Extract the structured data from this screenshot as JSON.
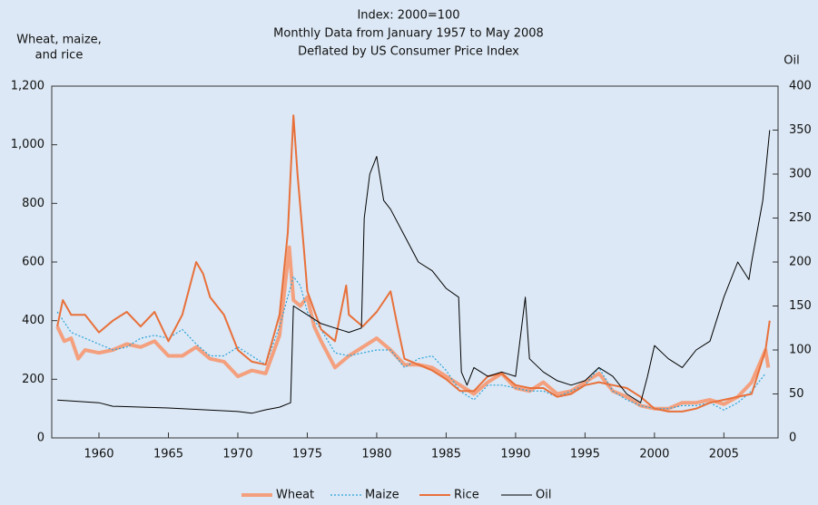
{
  "chart_data": {
    "type": "line",
    "title": [
      "Index: 2000=100",
      "Monthly Data from January 1957 to May 2008",
      "Deflated by US Consumer Price Index"
    ],
    "y_label": [
      "Wheat, maize,",
      "and rice"
    ],
    "y2_label": "Oil",
    "xlim": [
      1956.6,
      2008.9
    ],
    "xticks": [
      1960,
      1965,
      1970,
      1975,
      1980,
      1985,
      1990,
      1995,
      2000,
      2005
    ],
    "ylim": [
      0,
      1200
    ],
    "yticks": [
      0,
      200,
      400,
      600,
      800,
      {
        "value": 1000,
        "label": "1,000"
      },
      {
        "value": 1200,
        "label": "1,200"
      }
    ],
    "y2lim": [
      0,
      400
    ],
    "y2ticks": [
      0,
      50,
      100,
      150,
      200,
      250,
      300,
      350,
      400
    ],
    "legend": "bottom",
    "series": [
      {
        "name": "Wheat",
        "color": "#f4a07e",
        "style": "thick",
        "x": [
          1957,
          1957.5,
          1958,
          1958.5,
          1959,
          1960,
          1961,
          1962,
          1963,
          1964,
          1965,
          1966,
          1967,
          1968,
          1969,
          1970,
          1971,
          1972,
          1973,
          1973.7,
          1974,
          1974.5,
          1975,
          1975.5,
          1976,
          1977,
          1978,
          1979,
          1980,
          1981,
          1982,
          1983,
          1984,
          1985,
          1986,
          1987,
          1988,
          1989,
          1990,
          1991,
          1992,
          1993,
          1994,
          1995,
          1996,
          1997,
          1998,
          1999,
          2000,
          2001,
          2002,
          2003,
          2004,
          2005,
          2006,
          2007,
          2008,
          2008.2
        ],
        "values": [
          380,
          330,
          340,
          270,
          300,
          290,
          300,
          320,
          310,
          330,
          280,
          280,
          310,
          270,
          260,
          210,
          230,
          220,
          350,
          650,
          470,
          450,
          480,
          380,
          330,
          240,
          280,
          310,
          340,
          300,
          250,
          250,
          240,
          210,
          180,
          150,
          190,
          220,
          170,
          160,
          190,
          150,
          160,
          190,
          220,
          160,
          140,
          110,
          100,
          100,
          120,
          120,
          130,
          115,
          140,
          190,
          300,
          240
        ]
      },
      {
        "name": "Maize",
        "color": "#2aa3da",
        "style": "dotted",
        "x": [
          1957,
          1958,
          1959,
          1960,
          1961,
          1962,
          1963,
          1964,
          1965,
          1966,
          1967,
          1968,
          1969,
          1970,
          1971,
          1972,
          1973,
          1974,
          1974.5,
          1975,
          1976,
          1977,
          1978,
          1979,
          1980,
          1981,
          1982,
          1983,
          1984,
          1985,
          1986,
          1987,
          1988,
          1989,
          1990,
          1991,
          1992,
          1993,
          1994,
          1995,
          1996,
          1997,
          1998,
          1999,
          2000,
          2001,
          2002,
          2003,
          2004,
          2005,
          2006,
          2007,
          2008
        ],
        "values": [
          430,
          360,
          340,
          320,
          300,
          310,
          340,
          350,
          340,
          370,
          320,
          280,
          280,
          310,
          280,
          250,
          380,
          550,
          520,
          430,
          370,
          290,
          280,
          290,
          300,
          300,
          240,
          270,
          280,
          230,
          160,
          130,
          180,
          180,
          170,
          160,
          160,
          140,
          160,
          180,
          240,
          160,
          130,
          110,
          100,
          100,
          110,
          110,
          120,
          95,
          120,
          160,
          220
        ]
      },
      {
        "name": "Rice",
        "color": "#e8703a",
        "style": "normal",
        "x": [
          1957,
          1957.4,
          1958,
          1959,
          1960,
          1961,
          1962,
          1963,
          1964,
          1965,
          1966,
          1967,
          1967.5,
          1968,
          1969,
          1970,
          1971,
          1972,
          1973,
          1973.6,
          1974,
          1974.3,
          1974.8,
          1975,
          1976,
          1977,
          1977.8,
          1978,
          1979,
          1980,
          1981,
          1981.5,
          1982,
          1983,
          1984,
          1985,
          1986,
          1987,
          1988,
          1989,
          1990,
          1991,
          1992,
          1993,
          1994,
          1995,
          1996,
          1997,
          1998,
          1999,
          2000,
          2001,
          2002,
          2003,
          2004,
          2005,
          2006,
          2007,
          2008,
          2008.3
        ],
        "values": [
          380,
          470,
          420,
          420,
          360,
          400,
          430,
          380,
          430,
          330,
          420,
          600,
          560,
          480,
          420,
          300,
          260,
          250,
          420,
          700,
          1100,
          900,
          620,
          500,
          370,
          330,
          520,
          420,
          380,
          430,
          500,
          380,
          270,
          250,
          230,
          200,
          160,
          160,
          210,
          220,
          180,
          170,
          170,
          140,
          150,
          180,
          190,
          180,
          170,
          140,
          100,
          90,
          90,
          100,
          120,
          130,
          140,
          150,
          300,
          400
        ]
      },
      {
        "name": "Oil",
        "color": "#000000",
        "style": "thin",
        "axis": "y2",
        "x": [
          1957,
          1960,
          1961,
          1965,
          1970,
          1971,
          1972,
          1973,
          1973.8,
          1974,
          1975,
          1976,
          1977,
          1978,
          1978.9,
          1979.1,
          1979.5,
          1980,
          1980.5,
          1981,
          1982,
          1983,
          1984,
          1985,
          1985.9,
          1986.1,
          1986.5,
          1987,
          1988,
          1989,
          1990,
          1990.7,
          1991,
          1992,
          1993,
          1994,
          1995,
          1996,
          1997,
          1998,
          1999,
          1999.5,
          2000,
          2001,
          2002,
          2003,
          2004,
          2005,
          2006,
          2006.8,
          2007,
          2007.8,
          2008.3
        ],
        "values": [
          43,
          40,
          36,
          34,
          30,
          28,
          32,
          35,
          40,
          150,
          140,
          130,
          125,
          120,
          125,
          250,
          300,
          320,
          270,
          260,
          230,
          200,
          190,
          170,
          160,
          75,
          60,
          80,
          70,
          75,
          70,
          160,
          90,
          75,
          65,
          60,
          65,
          80,
          70,
          50,
          40,
          70,
          105,
          90,
          80,
          100,
          110,
          160,
          200,
          180,
          200,
          270,
          350
        ]
      }
    ]
  }
}
